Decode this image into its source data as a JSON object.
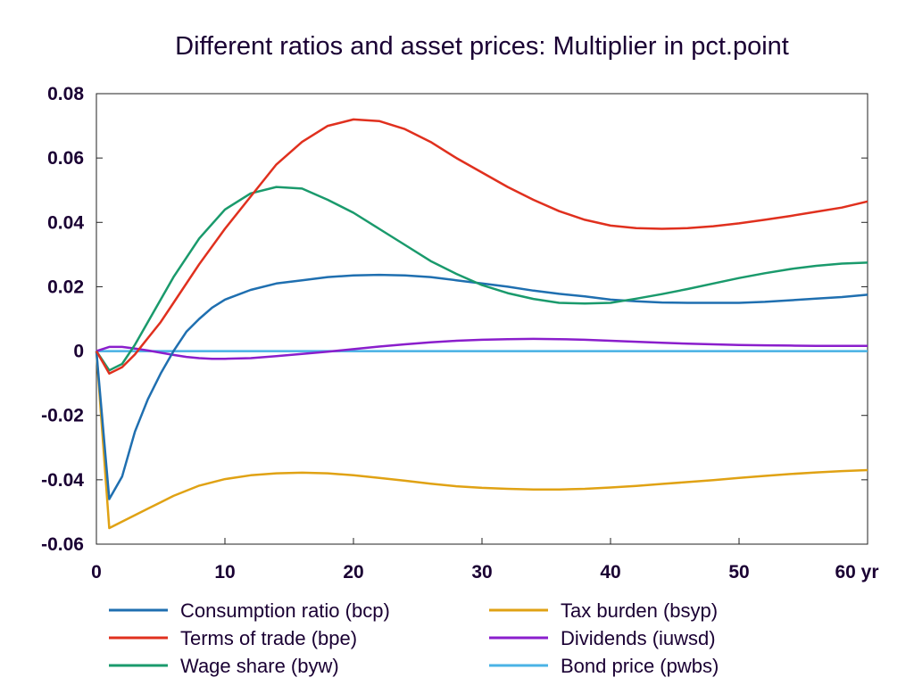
{
  "chart_data": {
    "type": "line",
    "title": "Different ratios and asset prices: Multiplier in pct.point",
    "xlabel": "",
    "ylabel": "",
    "xlim": [
      0,
      60
    ],
    "ylim": [
      -0.06,
      0.08
    ],
    "x_ticks": [
      0,
      10,
      20,
      30,
      40,
      50,
      60
    ],
    "x_tick_labels": [
      "0",
      "10",
      "20",
      "30",
      "40",
      "50",
      "60 yr"
    ],
    "y_ticks": [
      -0.06,
      -0.04,
      -0.02,
      0,
      0.02,
      0.04,
      0.06,
      0.08
    ],
    "y_tick_labels": [
      "-0.06",
      "-0.04",
      "-0.02",
      "0",
      "0.02",
      "0.04",
      "0.06",
      "0.08"
    ],
    "grid": false,
    "legend_position": "bottom",
    "series": [
      {
        "name": "Consumption ratio (bcp)",
        "color": "#1f6fb0",
        "points": [
          [
            0,
            0
          ],
          [
            1,
            -0.046
          ],
          [
            2,
            -0.039
          ],
          [
            3,
            -0.025
          ],
          [
            4,
            -0.015
          ],
          [
            5,
            -0.007
          ],
          [
            6,
            0
          ],
          [
            7,
            0.006
          ],
          [
            8,
            0.01
          ],
          [
            9,
            0.0135
          ],
          [
            10,
            0.016
          ],
          [
            12,
            0.019
          ],
          [
            14,
            0.021
          ],
          [
            16,
            0.022
          ],
          [
            18,
            0.023
          ],
          [
            20,
            0.0235
          ],
          [
            22,
            0.0237
          ],
          [
            24,
            0.0235
          ],
          [
            26,
            0.023
          ],
          [
            28,
            0.022
          ],
          [
            30,
            0.021
          ],
          [
            32,
            0.02
          ],
          [
            34,
            0.0188
          ],
          [
            36,
            0.0178
          ],
          [
            38,
            0.017
          ],
          [
            40,
            0.016
          ],
          [
            42,
            0.0155
          ],
          [
            44,
            0.0151
          ],
          [
            46,
            0.015
          ],
          [
            48,
            0.015
          ],
          [
            50,
            0.015
          ],
          [
            52,
            0.0153
          ],
          [
            54,
            0.0158
          ],
          [
            56,
            0.0163
          ],
          [
            58,
            0.0168
          ],
          [
            60,
            0.0175
          ]
        ]
      },
      {
        "name": "Terms of trade (bpe)",
        "color": "#e0301e",
        "points": [
          [
            0,
            0
          ],
          [
            1,
            -0.007
          ],
          [
            2,
            -0.005
          ],
          [
            3,
            -0.001
          ],
          [
            4,
            0.004
          ],
          [
            5,
            0.009
          ],
          [
            6,
            0.015
          ],
          [
            8,
            0.027
          ],
          [
            10,
            0.038
          ],
          [
            12,
            0.048
          ],
          [
            14,
            0.058
          ],
          [
            16,
            0.065
          ],
          [
            18,
            0.07
          ],
          [
            20,
            0.072
          ],
          [
            22,
            0.0715
          ],
          [
            24,
            0.069
          ],
          [
            26,
            0.065
          ],
          [
            28,
            0.06
          ],
          [
            30,
            0.0555
          ],
          [
            32,
            0.051
          ],
          [
            34,
            0.047
          ],
          [
            36,
            0.0435
          ],
          [
            38,
            0.0408
          ],
          [
            40,
            0.039
          ],
          [
            42,
            0.0382
          ],
          [
            44,
            0.038
          ],
          [
            46,
            0.0382
          ],
          [
            48,
            0.0388
          ],
          [
            50,
            0.0397
          ],
          [
            52,
            0.0408
          ],
          [
            54,
            0.042
          ],
          [
            56,
            0.0433
          ],
          [
            58,
            0.0446
          ],
          [
            60,
            0.0465
          ]
        ]
      },
      {
        "name": "Wage share (byw)",
        "color": "#1a9a6c",
        "points": [
          [
            0,
            0
          ],
          [
            1,
            -0.006
          ],
          [
            2,
            -0.004
          ],
          [
            3,
            0.002
          ],
          [
            4,
            0.009
          ],
          [
            5,
            0.016
          ],
          [
            6,
            0.023
          ],
          [
            8,
            0.035
          ],
          [
            10,
            0.044
          ],
          [
            12,
            0.049
          ],
          [
            14,
            0.051
          ],
          [
            16,
            0.0505
          ],
          [
            18,
            0.047
          ],
          [
            20,
            0.043
          ],
          [
            22,
            0.038
          ],
          [
            24,
            0.033
          ],
          [
            26,
            0.028
          ],
          [
            28,
            0.024
          ],
          [
            30,
            0.0205
          ],
          [
            32,
            0.018
          ],
          [
            34,
            0.0162
          ],
          [
            36,
            0.015
          ],
          [
            38,
            0.0148
          ],
          [
            40,
            0.015
          ],
          [
            42,
            0.0163
          ],
          [
            44,
            0.0177
          ],
          [
            46,
            0.0193
          ],
          [
            48,
            0.021
          ],
          [
            50,
            0.0227
          ],
          [
            52,
            0.0242
          ],
          [
            54,
            0.0255
          ],
          [
            56,
            0.0265
          ],
          [
            58,
            0.0272
          ],
          [
            60,
            0.0275
          ]
        ]
      },
      {
        "name": "Tax burden (bsyp)",
        "color": "#e0a214",
        "points": [
          [
            0,
            0
          ],
          [
            1,
            -0.055
          ],
          [
            2,
            -0.053
          ],
          [
            3,
            -0.051
          ],
          [
            4,
            -0.049
          ],
          [
            5,
            -0.047
          ],
          [
            6,
            -0.045
          ],
          [
            8,
            -0.0418
          ],
          [
            10,
            -0.0398
          ],
          [
            12,
            -0.0386
          ],
          [
            14,
            -0.038
          ],
          [
            16,
            -0.0378
          ],
          [
            18,
            -0.038
          ],
          [
            20,
            -0.0386
          ],
          [
            22,
            -0.0394
          ],
          [
            24,
            -0.0403
          ],
          [
            26,
            -0.0412
          ],
          [
            28,
            -0.042
          ],
          [
            30,
            -0.0425
          ],
          [
            32,
            -0.0428
          ],
          [
            34,
            -0.043
          ],
          [
            36,
            -0.043
          ],
          [
            38,
            -0.0428
          ],
          [
            40,
            -0.0424
          ],
          [
            42,
            -0.0419
          ],
          [
            44,
            -0.0413
          ],
          [
            46,
            -0.0407
          ],
          [
            48,
            -0.0401
          ],
          [
            50,
            -0.0394
          ],
          [
            52,
            -0.0388
          ],
          [
            54,
            -0.0382
          ],
          [
            56,
            -0.0377
          ],
          [
            58,
            -0.0373
          ],
          [
            60,
            -0.037
          ]
        ]
      },
      {
        "name": "Dividends (iuwsd)",
        "color": "#8a1ecc",
        "points": [
          [
            0,
            0
          ],
          [
            1,
            0.0013
          ],
          [
            2,
            0.0013
          ],
          [
            3,
            0.0008
          ],
          [
            4,
            0.0002
          ],
          [
            5,
            -0.0005
          ],
          [
            6,
            -0.0012
          ],
          [
            7,
            -0.0018
          ],
          [
            8,
            -0.0022
          ],
          [
            9,
            -0.0024
          ],
          [
            10,
            -0.0024
          ],
          [
            12,
            -0.0022
          ],
          [
            14,
            -0.0016
          ],
          [
            16,
            -0.0009
          ],
          [
            18,
            -0.0002
          ],
          [
            20,
            0.0006
          ],
          [
            22,
            0.0014
          ],
          [
            24,
            0.0021
          ],
          [
            26,
            0.0027
          ],
          [
            28,
            0.0032
          ],
          [
            30,
            0.0035
          ],
          [
            32,
            0.0037
          ],
          [
            34,
            0.0038
          ],
          [
            36,
            0.0037
          ],
          [
            38,
            0.0035
          ],
          [
            40,
            0.0032
          ],
          [
            42,
            0.0029
          ],
          [
            44,
            0.0026
          ],
          [
            46,
            0.0023
          ],
          [
            48,
            0.0021
          ],
          [
            50,
            0.0019
          ],
          [
            52,
            0.0018
          ],
          [
            54,
            0.0017
          ],
          [
            56,
            0.0016
          ],
          [
            58,
            0.0016
          ],
          [
            60,
            0.0016
          ]
        ]
      },
      {
        "name": "Bond price (pwbs)",
        "color": "#4ab3e6",
        "points": [
          [
            0,
            0
          ],
          [
            60,
            0
          ]
        ]
      }
    ]
  }
}
